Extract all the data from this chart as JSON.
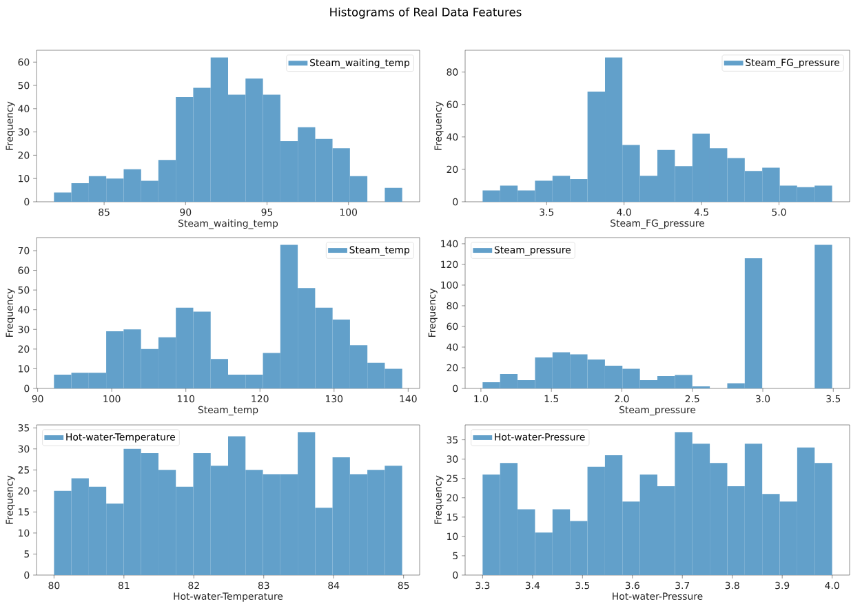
{
  "chart_data": [
    {
      "type": "histogram",
      "title": "Histograms of Real Data Features",
      "xlabel": "Steam_waiting_temp",
      "ylabel": "Frequency",
      "legend": "top right",
      "bins": [
        81.92,
        82.99,
        84.06,
        85.13,
        86.2,
        87.27,
        88.33,
        89.4,
        90.47,
        91.54,
        92.61,
        93.68,
        94.75,
        95.82,
        96.89,
        97.96,
        99.02,
        100.09,
        101.16,
        102.23,
        103.3
      ],
      "series": [
        {
          "name": "Steam_waiting_temp",
          "color": "#62a0ca",
          "values": [
            4,
            8,
            11,
            10,
            14,
            9,
            18,
            45,
            49,
            62,
            46,
            53,
            46,
            26,
            32,
            27,
            23,
            11,
            0,
            6
          ]
        }
      ],
      "xlim": [
        80.85,
        104.37
      ],
      "xticks": [
        85,
        90,
        95,
        100
      ],
      "ylim": [
        0,
        65.1
      ],
      "yticks": [
        0,
        10,
        20,
        30,
        40,
        50,
        60
      ]
    },
    {
      "type": "histogram",
      "xlabel": "Steam_FG_pressure",
      "ylabel": "Frequency",
      "legend": "top right",
      "bins": [
        3.087,
        3.2,
        3.313,
        3.425,
        3.538,
        3.651,
        3.764,
        3.877,
        3.989,
        4.102,
        4.215,
        4.328,
        4.441,
        4.553,
        4.666,
        4.779,
        4.892,
        5.005,
        5.117,
        5.23,
        5.343
      ],
      "series": [
        {
          "name": "Steam_FG_pressure",
          "color": "#62a0ca",
          "values": [
            7,
            10,
            7,
            13,
            16,
            14,
            68,
            89,
            35,
            16,
            32,
            22,
            42,
            33,
            27,
            19,
            21,
            10,
            9,
            10
          ]
        }
      ],
      "xlim": [
        2.974,
        5.456
      ],
      "xticks": [
        3.5,
        {
          "value": 4.0,
          "label": "4.0"
        },
        4.5,
        {
          "value": 5.0,
          "label": "5.0"
        }
      ],
      "ylim": [
        0,
        93.45
      ],
      "yticks": [
        0,
        20,
        40,
        60,
        80
      ]
    },
    {
      "type": "histogram",
      "xlabel": "Steam_temp",
      "ylabel": "Frequency",
      "legend": "top right",
      "bins": [
        92.2,
        94.55,
        96.9,
        99.25,
        101.6,
        103.95,
        106.3,
        108.65,
        111.0,
        113.35,
        115.7,
        118.05,
        120.4,
        122.75,
        125.1,
        127.45,
        129.8,
        132.15,
        134.5,
        136.85,
        139.2
      ],
      "series": [
        {
          "name": "Steam_temp",
          "color": "#62a0ca",
          "values": [
            7,
            8,
            8,
            29,
            30,
            20,
            26,
            41,
            39,
            15,
            7,
            7,
            18,
            73,
            51,
            41,
            35,
            22,
            13,
            10
          ]
        }
      ],
      "xlim": [
        89.85,
        141.55
      ],
      "xticks": [
        90,
        100,
        110,
        120,
        130,
        140
      ],
      "ylim": [
        0,
        76.65
      ],
      "yticks": [
        0,
        10,
        20,
        30,
        40,
        50,
        60,
        70
      ]
    },
    {
      "type": "histogram",
      "xlabel": "Steam_pressure",
      "ylabel": "Frequency",
      "legend": "top left",
      "bins": [
        1.012,
        1.136,
        1.26,
        1.384,
        1.508,
        1.632,
        1.756,
        1.88,
        2.004,
        2.128,
        2.252,
        2.376,
        2.5,
        2.624,
        2.748,
        2.872,
        2.996,
        3.12,
        3.244,
        3.368,
        3.492
      ],
      "series": [
        {
          "name": "Steam_pressure",
          "color": "#62a0ca",
          "values": [
            6,
            14,
            8,
            30,
            35,
            33,
            28,
            22,
            19,
            8,
            12,
            13,
            2,
            0,
            5,
            126,
            0,
            0,
            0,
            139
          ]
        }
      ],
      "xlim": [
        0.888,
        3.616
      ],
      "xticks": [
        {
          "value": 1.0,
          "label": "1.0"
        },
        1.5,
        {
          "value": 2.0,
          "label": "2.0"
        },
        2.5,
        {
          "value": 3.0,
          "label": "3.0"
        },
        3.5
      ],
      "ylim": [
        0,
        145.95
      ],
      "yticks": [
        0,
        20,
        40,
        60,
        80,
        100,
        120,
        140
      ]
    },
    {
      "type": "histogram",
      "xlabel": "Hot-water-Temperature",
      "ylabel": "Frequency",
      "legend": "top left",
      "bins": [
        80.0,
        80.249,
        80.498,
        80.747,
        80.996,
        81.245,
        81.494,
        81.743,
        81.992,
        82.241,
        82.49,
        82.739,
        82.988,
        83.237,
        83.486,
        83.735,
        83.984,
        84.233,
        84.482,
        84.731,
        84.98
      ],
      "series": [
        {
          "name": "Hot-water-Temperature",
          "color": "#62a0ca",
          "values": [
            20,
            23,
            21,
            17,
            30,
            29,
            25,
            21,
            29,
            26,
            33,
            25,
            24,
            24,
            34,
            16,
            28,
            24,
            25,
            26
          ]
        }
      ],
      "xlim": [
        79.75,
        85.23
      ],
      "xticks": [
        80,
        81,
        82,
        83,
        84,
        85
      ],
      "ylim": [
        0,
        35.7
      ],
      "yticks": [
        0,
        5,
        10,
        15,
        20,
        25,
        30,
        35
      ]
    },
    {
      "type": "histogram",
      "xlabel": "Hot-water-Pressure",
      "ylabel": "Frequency",
      "legend": "top left",
      "bins": [
        3.3,
        3.335,
        3.37,
        3.405,
        3.44,
        3.475,
        3.51,
        3.545,
        3.58,
        3.615,
        3.65,
        3.685,
        3.72,
        3.755,
        3.79,
        3.825,
        3.86,
        3.895,
        3.93,
        3.965,
        4.0
      ],
      "series": [
        {
          "name": "Hot-water-Pressure",
          "color": "#62a0ca",
          "values": [
            26,
            29,
            17,
            11,
            17,
            14,
            28,
            31,
            19,
            26,
            23,
            37,
            34,
            29,
            23,
            34,
            21,
            19,
            33,
            29
          ]
        }
      ],
      "xlim": [
        3.265,
        4.035
      ],
      "xticks": [
        3.3,
        3.4,
        3.5,
        3.6,
        3.7,
        3.8,
        3.9,
        {
          "value": 4.0,
          "label": "4.0"
        }
      ],
      "ylim": [
        0,
        38.85
      ],
      "yticks": [
        0,
        5,
        10,
        15,
        20,
        25,
        30,
        35
      ]
    }
  ]
}
